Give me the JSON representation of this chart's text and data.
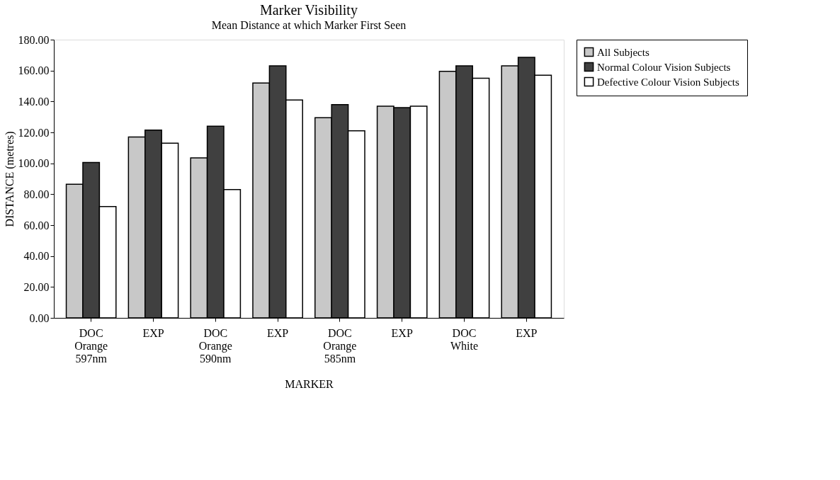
{
  "chart_data": {
    "type": "bar",
    "title": "Marker Visibility",
    "subtitle": "Mean Distance at which Marker First Seen",
    "xlabel": "MARKER",
    "ylabel": "DISTANCE (metres)",
    "categories": [
      "DOC\nOrange\n597nm",
      "EXP",
      "DOC\nOrange\n590nm",
      "EXP",
      "DOC\nOrange\n585nm",
      "EXP",
      "DOC\nWhite",
      "EXP"
    ],
    "series": [
      {
        "name": "All Subjects",
        "color": "#c8c8c8",
        "values": [
          86.5,
          117,
          103.5,
          152,
          129.5,
          137,
          159.5,
          163
        ]
      },
      {
        "name": "Normal Colour Vision Subjects",
        "color": "#404040",
        "values": [
          100.5,
          121.5,
          124,
          163,
          138,
          136,
          163,
          168.5
        ]
      },
      {
        "name": "Defective Colour Vision Subjects",
        "color": "#ffffff",
        "values": [
          72,
          113,
          83,
          141,
          121,
          137,
          155,
          157
        ]
      }
    ],
    "ylim": [
      0,
      180
    ],
    "yticks": [
      {
        "value": 0,
        "label": "0.00"
      },
      {
        "value": 20,
        "label": "20.00"
      },
      {
        "value": 40,
        "label": "40.00"
      },
      {
        "value": 60,
        "label": "60.00"
      },
      {
        "value": 80,
        "label": "80.00"
      },
      {
        "value": 100,
        "label": "100.00"
      },
      {
        "value": 120,
        "label": "120.00"
      },
      {
        "value": 140,
        "label": "140.00"
      },
      {
        "value": 160,
        "label": "160.00"
      },
      {
        "value": 180,
        "label": "180.00"
      }
    ],
    "grid": false,
    "legend": "right"
  }
}
